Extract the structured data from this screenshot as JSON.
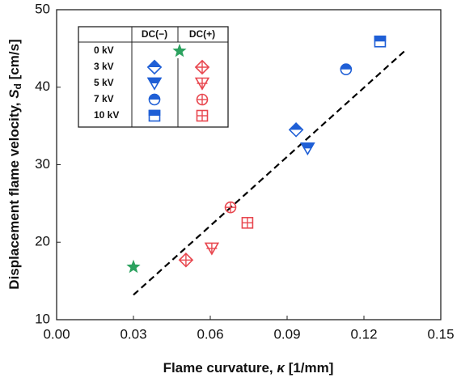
{
  "chart_data": {
    "type": "scatter",
    "xlabel": {
      "text": "Flame curvature, ",
      "symbol": "κ",
      "unit": " [1/mm]"
    },
    "ylabel": {
      "text": "Displacement flame velocity, ",
      "symbol": "S",
      "subscript": "d",
      "unit": " [cm/s]"
    },
    "xlim": [
      0,
      0.15
    ],
    "xticks": [
      {
        "value": 0,
        "label": "0.00"
      },
      0.03,
      0.06,
      0.09,
      0.12,
      0.15
    ],
    "ylim": [
      10,
      50
    ],
    "yticks": [
      10,
      20,
      30,
      40,
      50
    ],
    "reference": {
      "name": "0 kV",
      "color": "#2ca25f",
      "marker": "star",
      "x": [
        0.03
      ],
      "y": [
        16.8
      ]
    },
    "rows": [
      "3 kV",
      "5 kV",
      "7 kV",
      "10 kV"
    ],
    "groups": [
      {
        "name": "DC(−)",
        "color": "#1f5fd6",
        "style": "half",
        "markers": [
          "diamond",
          "triangle-down",
          "circle",
          "square"
        ],
        "x": [
          0.0935,
          0.098,
          0.113,
          0.1263
        ],
        "y": [
          34.5,
          32.1,
          42.3,
          45.9
        ]
      },
      {
        "name": "DC(+)",
        "color": "#e8474f",
        "style": "cross",
        "markers": [
          "diamond",
          "triangle-down",
          "circle",
          "square"
        ],
        "x": [
          0.0505,
          0.0606,
          0.0679,
          0.0745
        ],
        "y": [
          17.7,
          19.2,
          24.5,
          22.5
        ]
      }
    ],
    "trend_line": {
      "color": "#000000",
      "x": [
        0.03,
        0.136
      ],
      "y": [
        13.2,
        44.7
      ]
    }
  }
}
